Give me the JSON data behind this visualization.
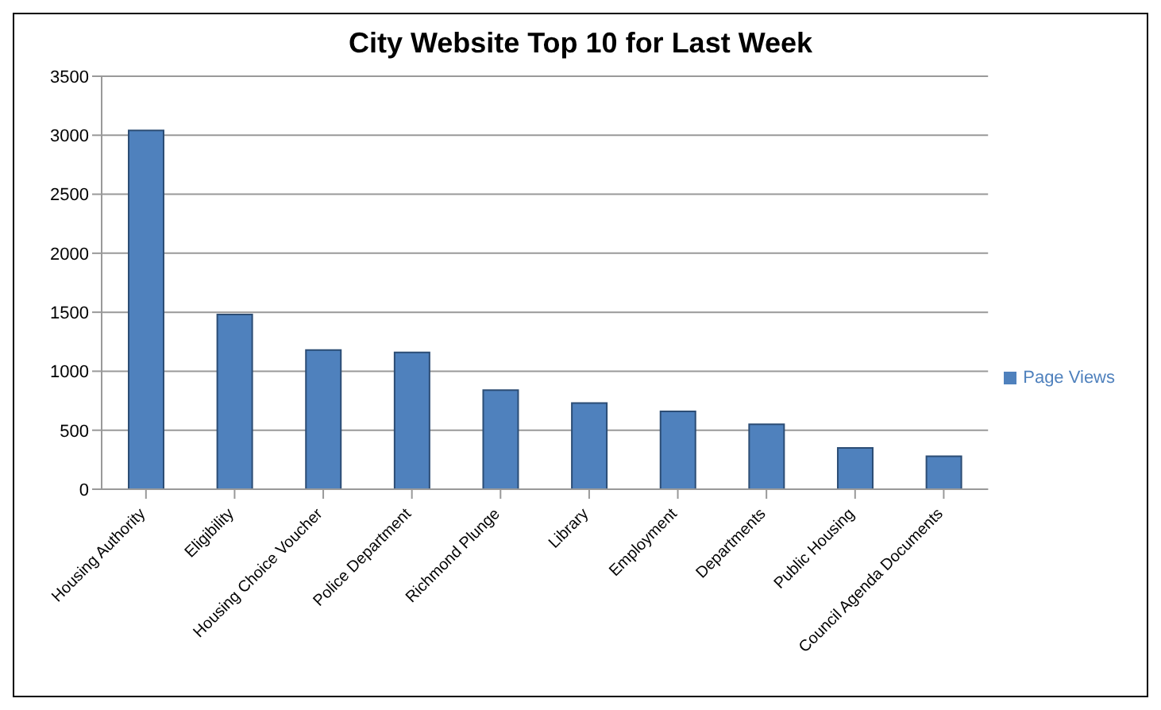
{
  "chart_data": {
    "type": "bar",
    "title": "City Website Top 10 for Last Week",
    "categories": [
      "Housing Authority",
      "Eligibility",
      "Housing Choice Voucher",
      "Police Department",
      "Richmond Plunge",
      "Library",
      "Employment",
      "Departments",
      "Public Housing",
      "Council Agenda Documents"
    ],
    "series": [
      {
        "name": "Page Views",
        "color": "#4f81bd",
        "values": [
          3040,
          1480,
          1180,
          1160,
          840,
          730,
          660,
          550,
          350,
          280
        ]
      }
    ],
    "ylim": [
      0,
      3500
    ],
    "yticks": [
      0,
      500,
      1000,
      1500,
      2000,
      2500,
      3000,
      3500
    ],
    "grid": "y",
    "legend": "right"
  }
}
